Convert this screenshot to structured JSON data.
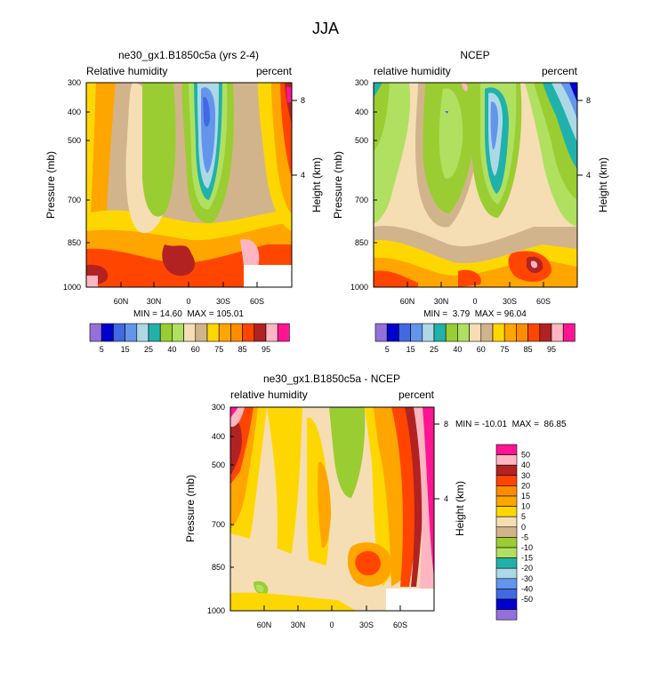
{
  "figure": {
    "title": "JJA"
  },
  "chart_data": [
    {
      "type": "contour",
      "title": "ne30_gx1.B1850c5a (yrs 2-4)",
      "left_label": "Relative humidity",
      "right_label": "percent",
      "ylabel": "Pressure (mb)",
      "right_axis_label": "Height (km)",
      "yticks": [
        "300",
        "400",
        "500",
        "700",
        "850",
        "1000"
      ],
      "xticks": [
        "60N",
        "30N",
        "0",
        "30S",
        "60S"
      ],
      "right_ticks": [
        "8",
        "4"
      ],
      "stats": "MIN = 14.60  MAX = 105.01"
    },
    {
      "type": "contour",
      "title": "NCEP",
      "left_label": "relative humidity",
      "right_label": "percent",
      "ylabel": "Pressure (mb)",
      "right_axis_label": "Height (km)",
      "yticks": [
        "300",
        "400",
        "500",
        "700",
        "850",
        "1000"
      ],
      "xticks": [
        "60N",
        "30N",
        "0",
        "30S",
        "60S"
      ],
      "right_ticks": [
        "8",
        "4"
      ],
      "stats": "MIN =  3.79  MAX = 96.04"
    },
    {
      "type": "contour",
      "title": "ne30_gx1.B1850c5a - NCEP",
      "left_label": "relative humidity",
      "right_label": "percent",
      "ylabel": "Pressure (mb)",
      "right_axis_label": "Height (km)",
      "yticks": [
        "300",
        "400",
        "500",
        "700",
        "850",
        "1000"
      ],
      "xticks": [
        "60N",
        "30N",
        "0",
        "30S",
        "60S"
      ],
      "right_ticks": [
        "8",
        "4"
      ],
      "stats": "MIN = -10.01  MAX =  86.85"
    }
  ],
  "colorbar_top": {
    "labels": [
      "5",
      "15",
      "25",
      "40",
      "60",
      "75",
      "85",
      "95"
    ],
    "colors": [
      "#9370db",
      "#0000cd",
      "#4169e1",
      "#6495ed",
      "#add8e6",
      "#20b2aa",
      "#9acd32",
      "#b0e060",
      "#f5deb3",
      "#d2b48c",
      "#ffd700",
      "#ffa500",
      "#ff8c00",
      "#ff4500",
      "#b22222",
      "#ffb6c1",
      "#ff1493"
    ]
  },
  "colorbar_diff": {
    "labels": [
      "50",
      "40",
      "30",
      "20",
      "15",
      "10",
      "5",
      "0",
      "-5",
      "-10",
      "-15",
      "-20",
      "-30",
      "-40",
      "-50"
    ],
    "colors": [
      "#ff1493",
      "#ffb6c1",
      "#b22222",
      "#ff4500",
      "#ff8c00",
      "#ffa500",
      "#ffd700",
      "#f5deb3",
      "#d2b48c",
      "#9acd32",
      "#b0e060",
      "#20b2aa",
      "#add8e6",
      "#6495ed",
      "#4169e1",
      "#0000cd",
      "#9370db"
    ]
  }
}
